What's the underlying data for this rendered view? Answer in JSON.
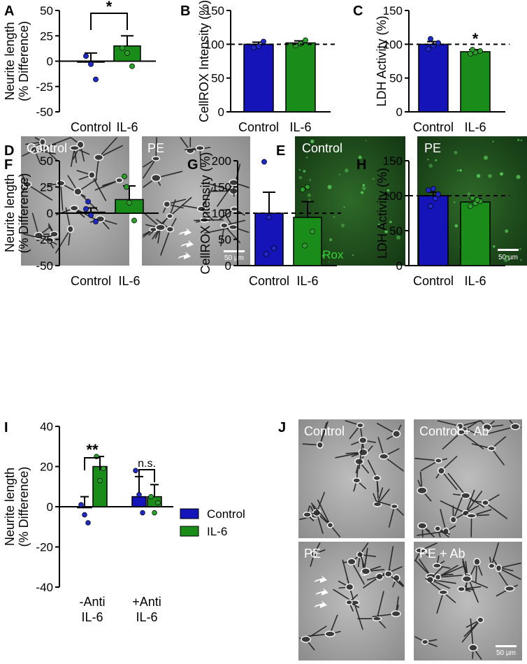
{
  "colors": {
    "control": "#1414b8",
    "il6": "#1a8c1a",
    "control_dot": "#1f28c8",
    "il6_dot": "#2aa02a"
  },
  "legend": {
    "items": [
      {
        "label": "Control",
        "color": "#1414b8"
      },
      {
        "label": "IL-6",
        "color": "#1a8c1a"
      }
    ]
  },
  "panels": [
    {
      "id": "A",
      "letter": "A"
    },
    {
      "id": "B",
      "letter": "B"
    },
    {
      "id": "C",
      "letter": "C"
    },
    {
      "id": "D",
      "letter": "D"
    },
    {
      "id": "E",
      "letter": "E"
    },
    {
      "id": "F",
      "letter": "F"
    },
    {
      "id": "G",
      "letter": "G"
    },
    {
      "id": "H",
      "letter": "H"
    },
    {
      "id": "I",
      "letter": "I"
    },
    {
      "id": "J",
      "letter": "J"
    }
  ],
  "images": {
    "D": {
      "labels": [
        "Control",
        "PE"
      ],
      "scale_bar": "50 µm"
    },
    "E": {
      "labels": [
        "Control",
        "PE"
      ],
      "stain": "CellRox",
      "scale_bar": "50 µm"
    },
    "J": {
      "labels": [
        "Control",
        "Control + Ab",
        "PE",
        "PE + Ab"
      ],
      "scale_bar": "50 µm"
    }
  },
  "chart_data": [
    {
      "panel": "A",
      "type": "bar",
      "categories": [
        "Control",
        "IL-6"
      ],
      "ylabel": [
        "Neurite length",
        "(% Difference)"
      ],
      "ylim": [
        -50,
        50
      ],
      "yticks": [
        -50,
        -25,
        0,
        25,
        50
      ],
      "series": [
        {
          "values": [
            0,
            15
          ],
          "sem": [
            8,
            10
          ],
          "points": [
            [
              5,
              -3,
              -18
            ],
            [
              13,
              8,
              -5
            ]
          ]
        }
      ],
      "significance": [
        {
          "label": "*",
          "pair": [
            0,
            1
          ]
        }
      ]
    },
    {
      "panel": "B",
      "type": "bar",
      "categories": [
        "Control",
        "IL-6"
      ],
      "ylabel": [
        "CellROX Intensity (%)"
      ],
      "ylim": [
        0,
        150
      ],
      "yticks": [
        0,
        50,
        100,
        150
      ],
      "reference_line": 100,
      "series": [
        {
          "values": [
            100,
            102
          ],
          "sem": [
            3,
            3
          ],
          "points": [
            [
              95,
              97,
              104
            ],
            [
              98,
              101,
              106
            ]
          ]
        }
      ]
    },
    {
      "panel": "C",
      "type": "bar",
      "categories": [
        "Control",
        "IL-6"
      ],
      "ylabel": [
        "LDH Activity (%)"
      ],
      "ylim": [
        0,
        150
      ],
      "yticks": [
        0,
        50,
        100,
        150
      ],
      "reference_line": 100,
      "series": [
        {
          "values": [
            100,
            89
          ],
          "sem": [
            4,
            3
          ],
          "points": [
            [
              93,
              98,
              102,
              108
            ],
            [
              86,
              88,
              90,
              92
            ]
          ]
        }
      ],
      "significance": [
        {
          "label": "*",
          "pair": [
            1,
            1
          ]
        }
      ]
    },
    {
      "panel": "F",
      "type": "bar",
      "categories": [
        "Control",
        "IL-6"
      ],
      "ylabel": [
        "Neurite length",
        "(% Difference)"
      ],
      "ylim": [
        -50,
        50
      ],
      "yticks": [
        -50,
        -25,
        0,
        25,
        50
      ],
      "series": [
        {
          "values": [
            1,
            13
          ],
          "sem": [
            4,
            13
          ],
          "points": [
            [
              4,
              -2,
              -8,
              11
            ],
            [
              35,
              10,
              -7,
              25
            ]
          ]
        }
      ]
    },
    {
      "panel": "G",
      "type": "bar",
      "categories": [
        "Control",
        "IL-6"
      ],
      "ylabel": [
        "CellROX Intensity (%)"
      ],
      "ylim": [
        0,
        200
      ],
      "yticks": [
        0,
        50,
        100,
        150,
        200
      ],
      "reference_line": 100,
      "series": [
        {
          "values": [
            100,
            92
          ],
          "sem": [
            40,
            30
          ],
          "points": [
            [
              198,
              92,
              33,
              22
            ],
            [
              145,
              150,
              65,
              38
            ]
          ]
        }
      ]
    },
    {
      "panel": "H",
      "type": "bar",
      "categories": [
        "Control",
        "IL-6"
      ],
      "ylabel": [
        "LDH Activity (%)"
      ],
      "ylim": [
        0,
        150
      ],
      "yticks": [
        0,
        50,
        100,
        150
      ],
      "reference_line": 100,
      "series": [
        {
          "values": [
            100,
            91
          ],
          "sem": [
            5,
            5
          ],
          "points": [
            [
              108,
              110,
              102,
              85,
              96
            ],
            [
              85,
              89,
              92,
              97,
              94
            ]
          ]
        }
      ]
    },
    {
      "panel": "I",
      "type": "bar",
      "groups": [
        {
          "label": [
            "-Anti",
            "IL-6"
          ]
        },
        {
          "label": [
            "+Anti",
            "IL-6"
          ]
        }
      ],
      "ylabel": [
        "Neurite length",
        "(% Difference)"
      ],
      "ylim": [
        -40,
        40
      ],
      "yticks": [
        -40,
        -20,
        0,
        20,
        40
      ],
      "series": [
        {
          "name": "Control",
          "values": [
            0,
            5
          ],
          "sem": [
            5,
            10
          ],
          "points": [
            [
              1,
              -4,
              -8
            ],
            [
              18,
              6,
              -3
            ]
          ]
        },
        {
          "name": "IL-6",
          "values": [
            20,
            5
          ],
          "sem": [
            5,
            6
          ],
          "points": [
            [
              25,
              13,
              19
            ],
            [
              5,
              -3,
              2
            ]
          ]
        }
      ],
      "significance": [
        {
          "label": "**",
          "group": 0
        },
        {
          "label": "n.s.",
          "group": 1
        }
      ]
    }
  ]
}
